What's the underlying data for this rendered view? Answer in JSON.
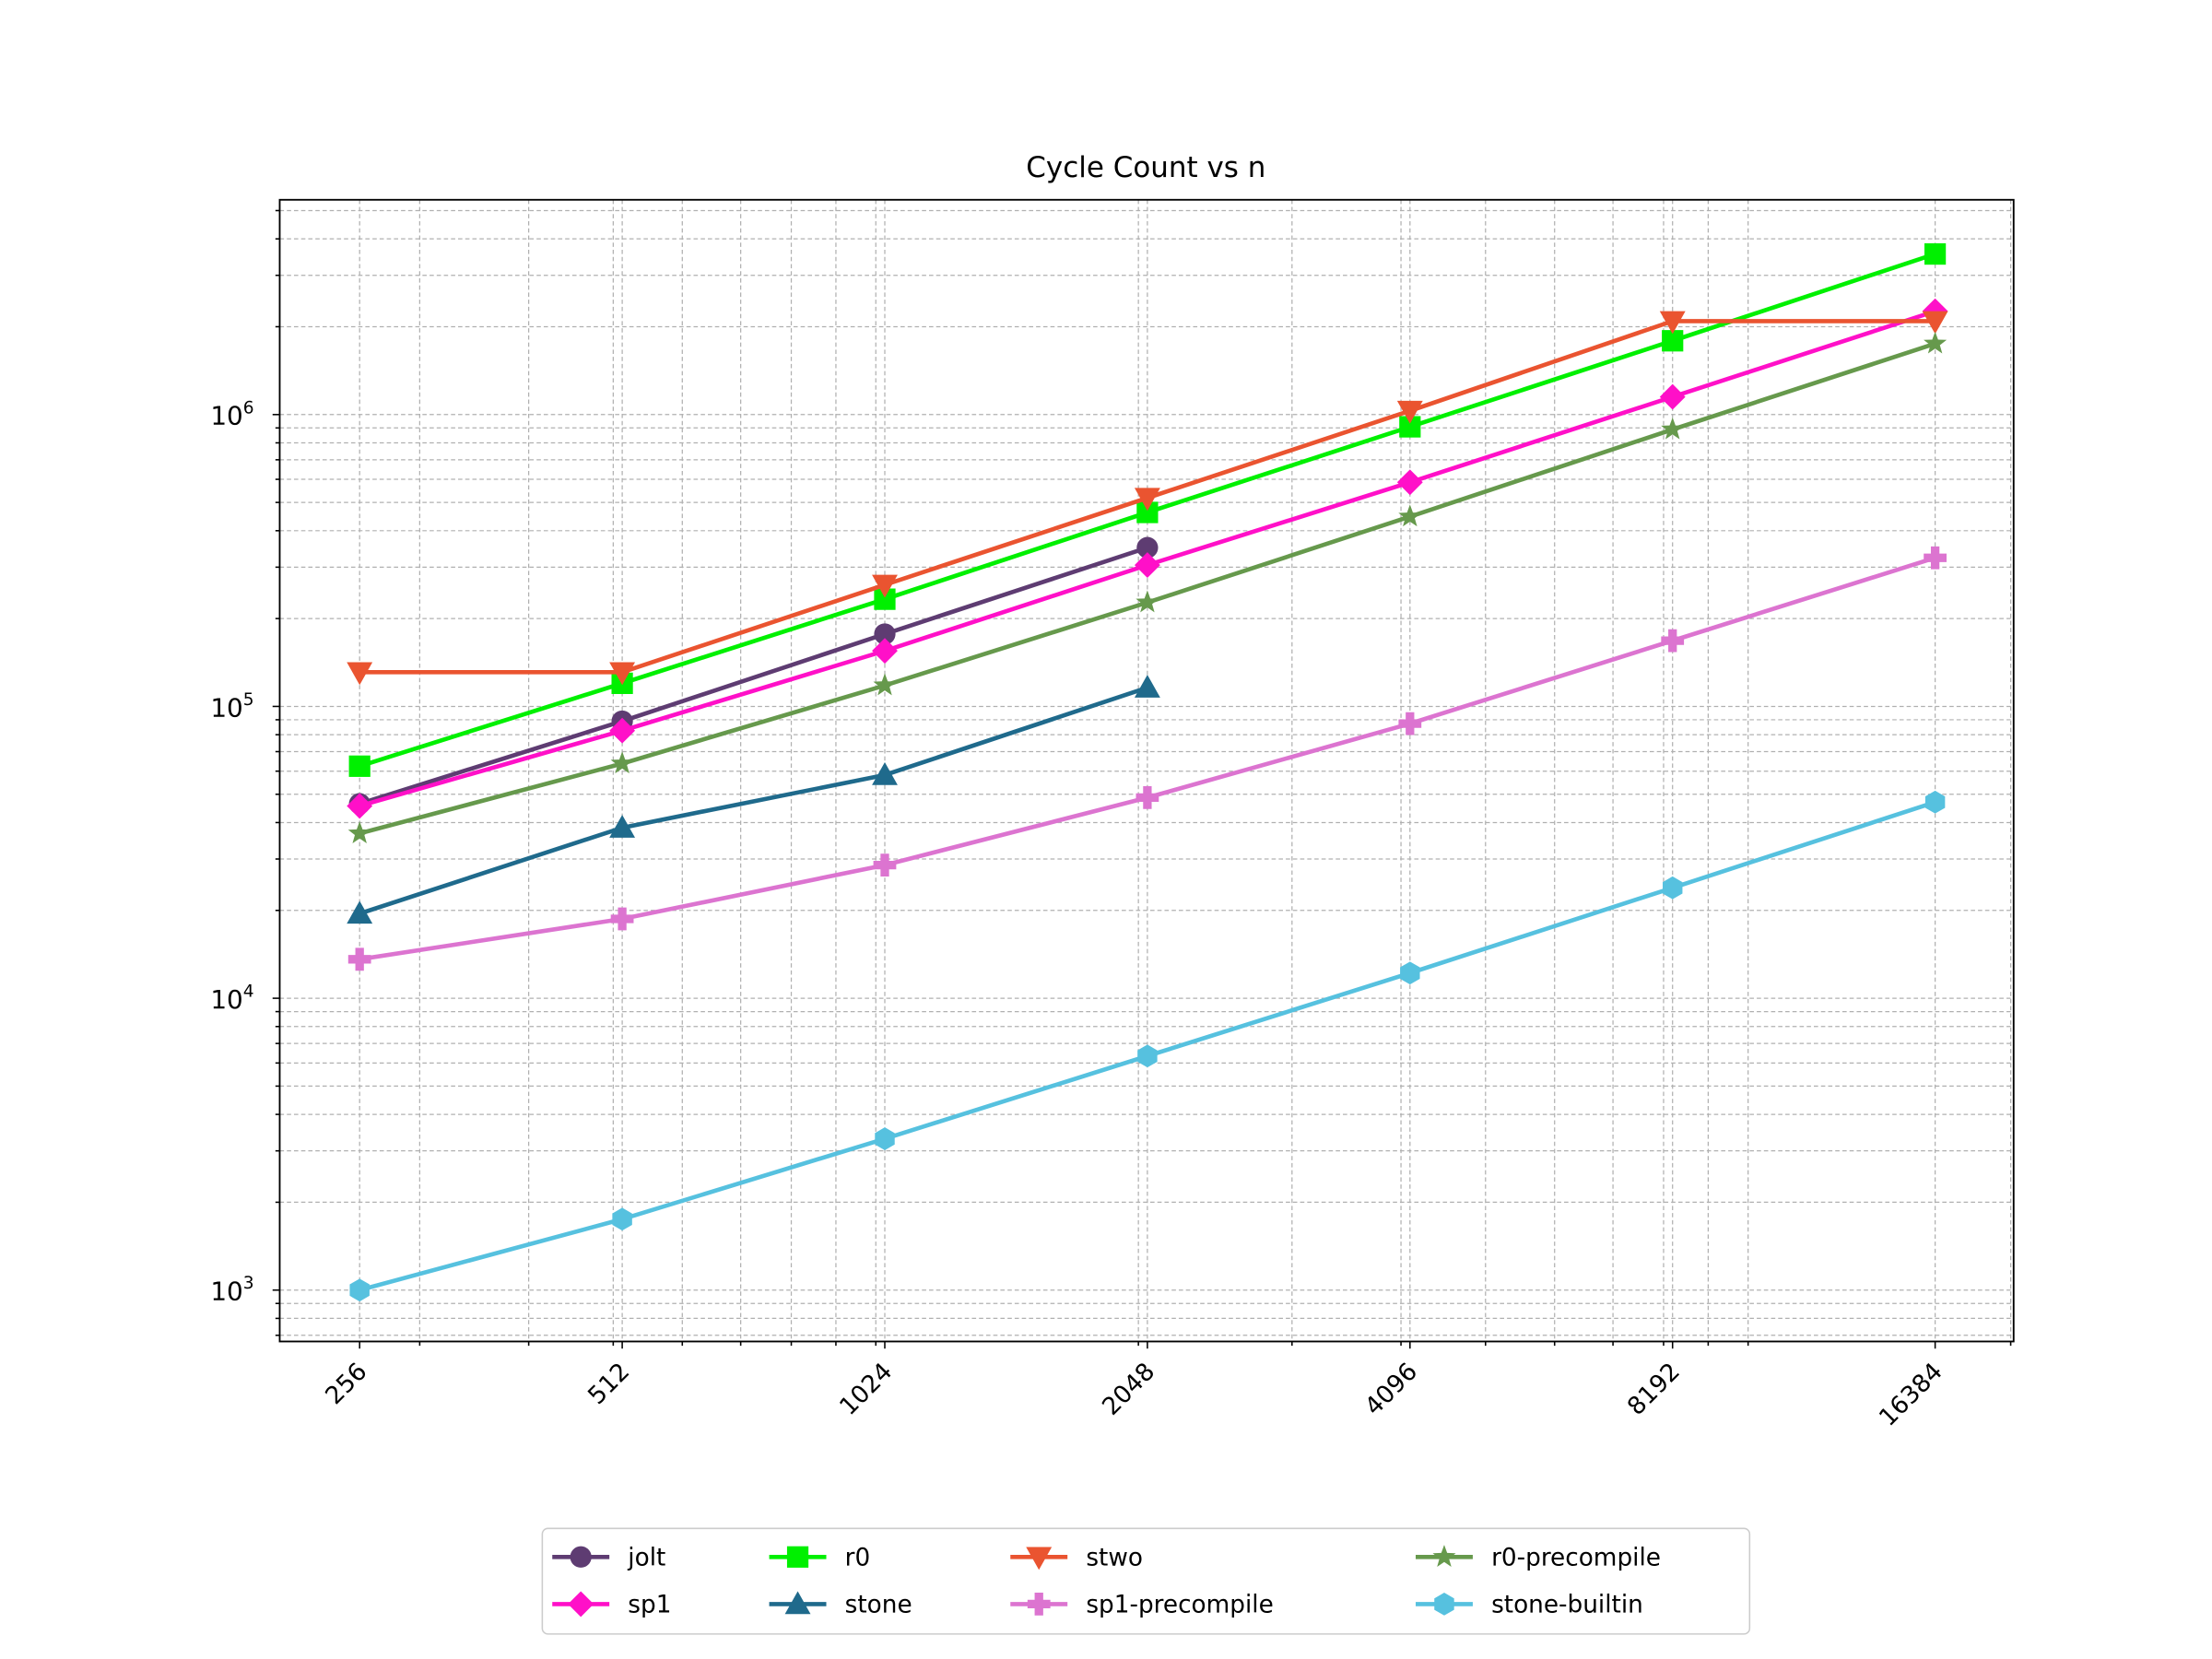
{
  "chart_data": {
    "type": "line",
    "title": "Cycle Count vs n",
    "xlabel": "",
    "ylabel": "",
    "xscale": "log",
    "yscale": "log",
    "x": [
      256,
      512,
      1024,
      2048,
      4096,
      8192,
      16384
    ],
    "x_tick_labels": [
      "256",
      "512",
      "1024",
      "2048",
      "4096",
      "8192",
      "16384"
    ],
    "y_tick_labels": [
      {
        "base": "10",
        "exp": "3",
        "value": 1000
      },
      {
        "base": "10",
        "exp": "4",
        "value": 10000
      },
      {
        "base": "10",
        "exp": "5",
        "value": 100000
      },
      {
        "base": "10",
        "exp": "6",
        "value": 1000000
      }
    ],
    "xlim": [
      208,
      20000
    ],
    "ylim": [
      660,
      5500000
    ],
    "grid": true,
    "legend_placement": "bottom-center",
    "series": [
      {
        "name": "jolt",
        "color": "#5e3c72",
        "marker": "circle",
        "values": [
          46400,
          89000,
          177000,
          350000,
          null,
          null,
          null
        ]
      },
      {
        "name": "sp1",
        "color": "#ff10c8",
        "marker": "diamond",
        "values": [
          45600,
          82600,
          155000,
          305000,
          586000,
          1150000,
          2260000
        ]
      },
      {
        "name": "r0",
        "color": "#00f000",
        "marker": "square",
        "values": [
          62400,
          120000,
          233000,
          462000,
          908000,
          1790000,
          3550000
        ]
      },
      {
        "name": "stone",
        "color": "#1f6a8c",
        "marker": "triangle-up",
        "values": [
          19500,
          38400,
          58200,
          116000,
          null,
          null,
          null
        ]
      },
      {
        "name": "stwo",
        "color": "#ea5430",
        "marker": "triangle-down",
        "values": [
          131000,
          131000,
          261000,
          518000,
          1030000,
          2090000,
          2090000
        ]
      },
      {
        "name": "sp1-precompile",
        "color": "#dc74d0",
        "marker": "plus",
        "values": [
          13600,
          18700,
          28600,
          48700,
          87300,
          168000,
          323000
        ]
      },
      {
        "name": "r0-precompile",
        "color": "#66994c",
        "marker": "star",
        "values": [
          36700,
          63700,
          118000,
          227000,
          447000,
          889000,
          1750000
        ]
      },
      {
        "name": "stone-builtin",
        "color": "#56c1df",
        "marker": "hexagon",
        "values": [
          1000,
          1750,
          3300,
          6340,
          12200,
          23900,
          47000
        ]
      }
    ]
  }
}
